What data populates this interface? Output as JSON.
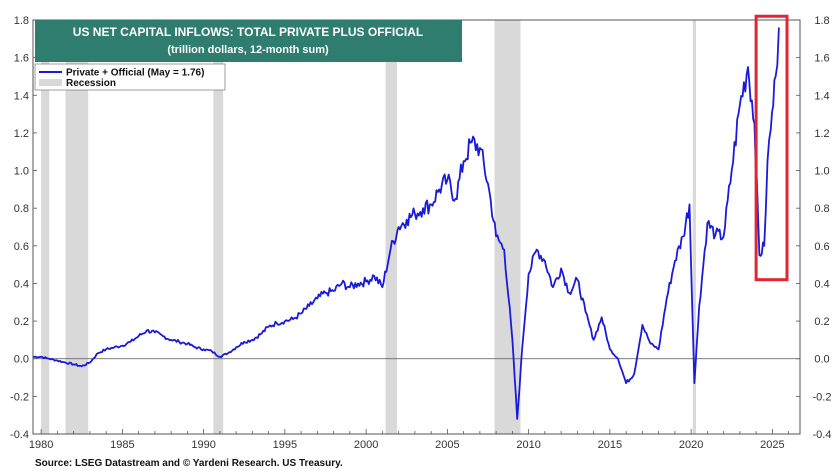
{
  "chart_data": {
    "type": "line",
    "title": "US NET CAPITAL INFLOWS: TOTAL PRIVATE PLUS OFFICIAL",
    "subtitle": "(trillion dollars, 12-month sum)",
    "source": "Source: LSEG Datastream and © Yardeni Research. US Treasury.",
    "xlim": [
      1979.5,
      2026.7
    ],
    "ylim": [
      -0.4,
      1.8
    ],
    "x_ticks": [
      1980,
      1985,
      1990,
      1995,
      2000,
      2005,
      2010,
      2015,
      2020,
      2025
    ],
    "x_tick_labels": [
      "1980",
      "1985",
      "1990",
      "1995",
      "2000",
      "2005",
      "2010",
      "2015",
      "2020",
      "2025"
    ],
    "y_ticks": [
      -0.4,
      -0.2,
      0.0,
      0.2,
      0.4,
      0.6,
      0.8,
      1.0,
      1.2,
      1.4,
      1.6,
      1.8
    ],
    "y_tick_labels": [
      "-0.4",
      "-0.2",
      "0.0",
      "0.2",
      "0.4",
      "0.6",
      "0.8",
      "1.0",
      "1.2",
      "1.4",
      "1.6",
      "1.8"
    ],
    "legend": {
      "placement": "top-left",
      "entries": [
        {
          "label": "Private + Official (May = 1.76)",
          "kind": "line"
        },
        {
          "label": "Recession",
          "kind": "band"
        }
      ]
    },
    "recessions": [
      [
        1980.0,
        1980.5
      ],
      [
        1981.5,
        1982.9
      ],
      [
        1990.6,
        1991.2
      ],
      [
        2001.2,
        2001.9
      ],
      [
        2007.9,
        2009.5
      ],
      [
        2020.1,
        2020.3
      ]
    ],
    "highlight_box": {
      "x_range": [
        2024.0,
        2025.9
      ],
      "y_range": [
        0.42,
        1.82
      ],
      "color": "#e0262f"
    },
    "colors": {
      "line": "#1a1adb",
      "recession": "#d9d9d9",
      "title_bg": "#2e7d6f",
      "zero_line": "#555555"
    },
    "series": [
      {
        "name": "Private + Official (May = 1.76)",
        "x": [
          1979.5,
          1980.0,
          1980.5,
          1981.0,
          1981.5,
          1982.0,
          1982.5,
          1983.0,
          1983.5,
          1984.0,
          1984.5,
          1985.0,
          1985.5,
          1986.0,
          1986.5,
          1987.0,
          1987.5,
          1988.0,
          1988.5,
          1989.0,
          1989.5,
          1990.0,
          1990.5,
          1991.0,
          1991.5,
          1992.0,
          1992.5,
          1993.0,
          1993.5,
          1994.0,
          1994.5,
          1995.0,
          1995.5,
          1996.0,
          1996.5,
          1997.0,
          1997.5,
          1998.0,
          1998.5,
          1999.0,
          1999.5,
          2000.0,
          2000.5,
          2001.0,
          2001.5,
          2002.0,
          2002.5,
          2003.0,
          2003.5,
          2004.0,
          2004.5,
          2005.0,
          2005.5,
          2006.0,
          2006.5,
          2007.0,
          2007.5,
          2008.0,
          2008.5,
          2009.0,
          2009.3,
          2009.6,
          2010.0,
          2010.5,
          2011.0,
          2011.5,
          2012.0,
          2012.5,
          2013.0,
          2013.5,
          2014.0,
          2014.5,
          2015.0,
          2015.5,
          2016.0,
          2016.5,
          2017.0,
          2017.5,
          2018.0,
          2018.5,
          2019.0,
          2019.5,
          2019.9,
          2020.2,
          2020.5,
          2021.0,
          2021.5,
          2022.0,
          2022.5,
          2023.0,
          2023.5,
          2023.9,
          2024.2,
          2024.5,
          2024.7,
          2024.9,
          2025.2,
          2025.4
        ],
        "values": [
          0.01,
          0.01,
          0.0,
          -0.01,
          -0.02,
          -0.03,
          -0.04,
          -0.02,
          0.03,
          0.05,
          0.06,
          0.07,
          0.09,
          0.12,
          0.15,
          0.14,
          0.12,
          0.1,
          0.09,
          0.08,
          0.06,
          0.05,
          0.04,
          0.01,
          0.03,
          0.06,
          0.09,
          0.1,
          0.13,
          0.17,
          0.19,
          0.2,
          0.21,
          0.24,
          0.28,
          0.32,
          0.35,
          0.36,
          0.4,
          0.38,
          0.4,
          0.41,
          0.44,
          0.38,
          0.58,
          0.7,
          0.74,
          0.77,
          0.8,
          0.82,
          0.9,
          0.95,
          0.85,
          1.05,
          1.15,
          1.12,
          0.93,
          0.65,
          0.58,
          0.1,
          -0.32,
          0.05,
          0.45,
          0.58,
          0.52,
          0.38,
          0.48,
          0.35,
          0.42,
          0.25,
          0.1,
          0.22,
          0.05,
          0.0,
          -0.13,
          -0.08,
          0.18,
          0.08,
          0.05,
          0.32,
          0.52,
          0.65,
          0.82,
          -0.13,
          0.28,
          0.72,
          0.66,
          0.65,
          1.0,
          1.35,
          1.55,
          1.25,
          0.55,
          0.6,
          1.05,
          1.22,
          1.5,
          1.76
        ]
      }
    ]
  }
}
